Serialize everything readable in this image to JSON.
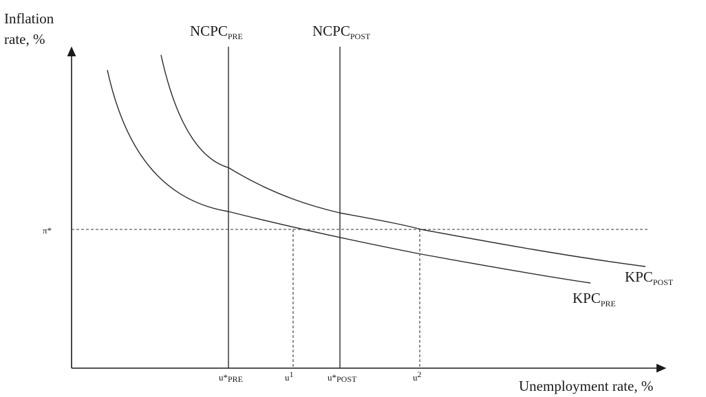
{
  "axes": {
    "y_label_line1": "Inflation",
    "y_label_line2": "rate, %",
    "x_label": "Unemployment rate, %",
    "pi_star": "π*"
  },
  "vertical_lines": {
    "pre": {
      "name": "NCPC",
      "sub": "PRE"
    },
    "post": {
      "name": "NCPC",
      "sub": "POST"
    }
  },
  "curves": {
    "pre": {
      "name": "KPC",
      "sub": "PRE"
    },
    "post": {
      "name": "KPC",
      "sub": "POST"
    }
  },
  "x_ticks": {
    "u_star_pre": {
      "base": "u*",
      "sub": "PRE"
    },
    "u1": {
      "base": "u",
      "sup": "1"
    },
    "u_star_post": {
      "base": "u*",
      "sub": "POST"
    },
    "u2": {
      "base": "u",
      "sup": "2"
    }
  }
}
